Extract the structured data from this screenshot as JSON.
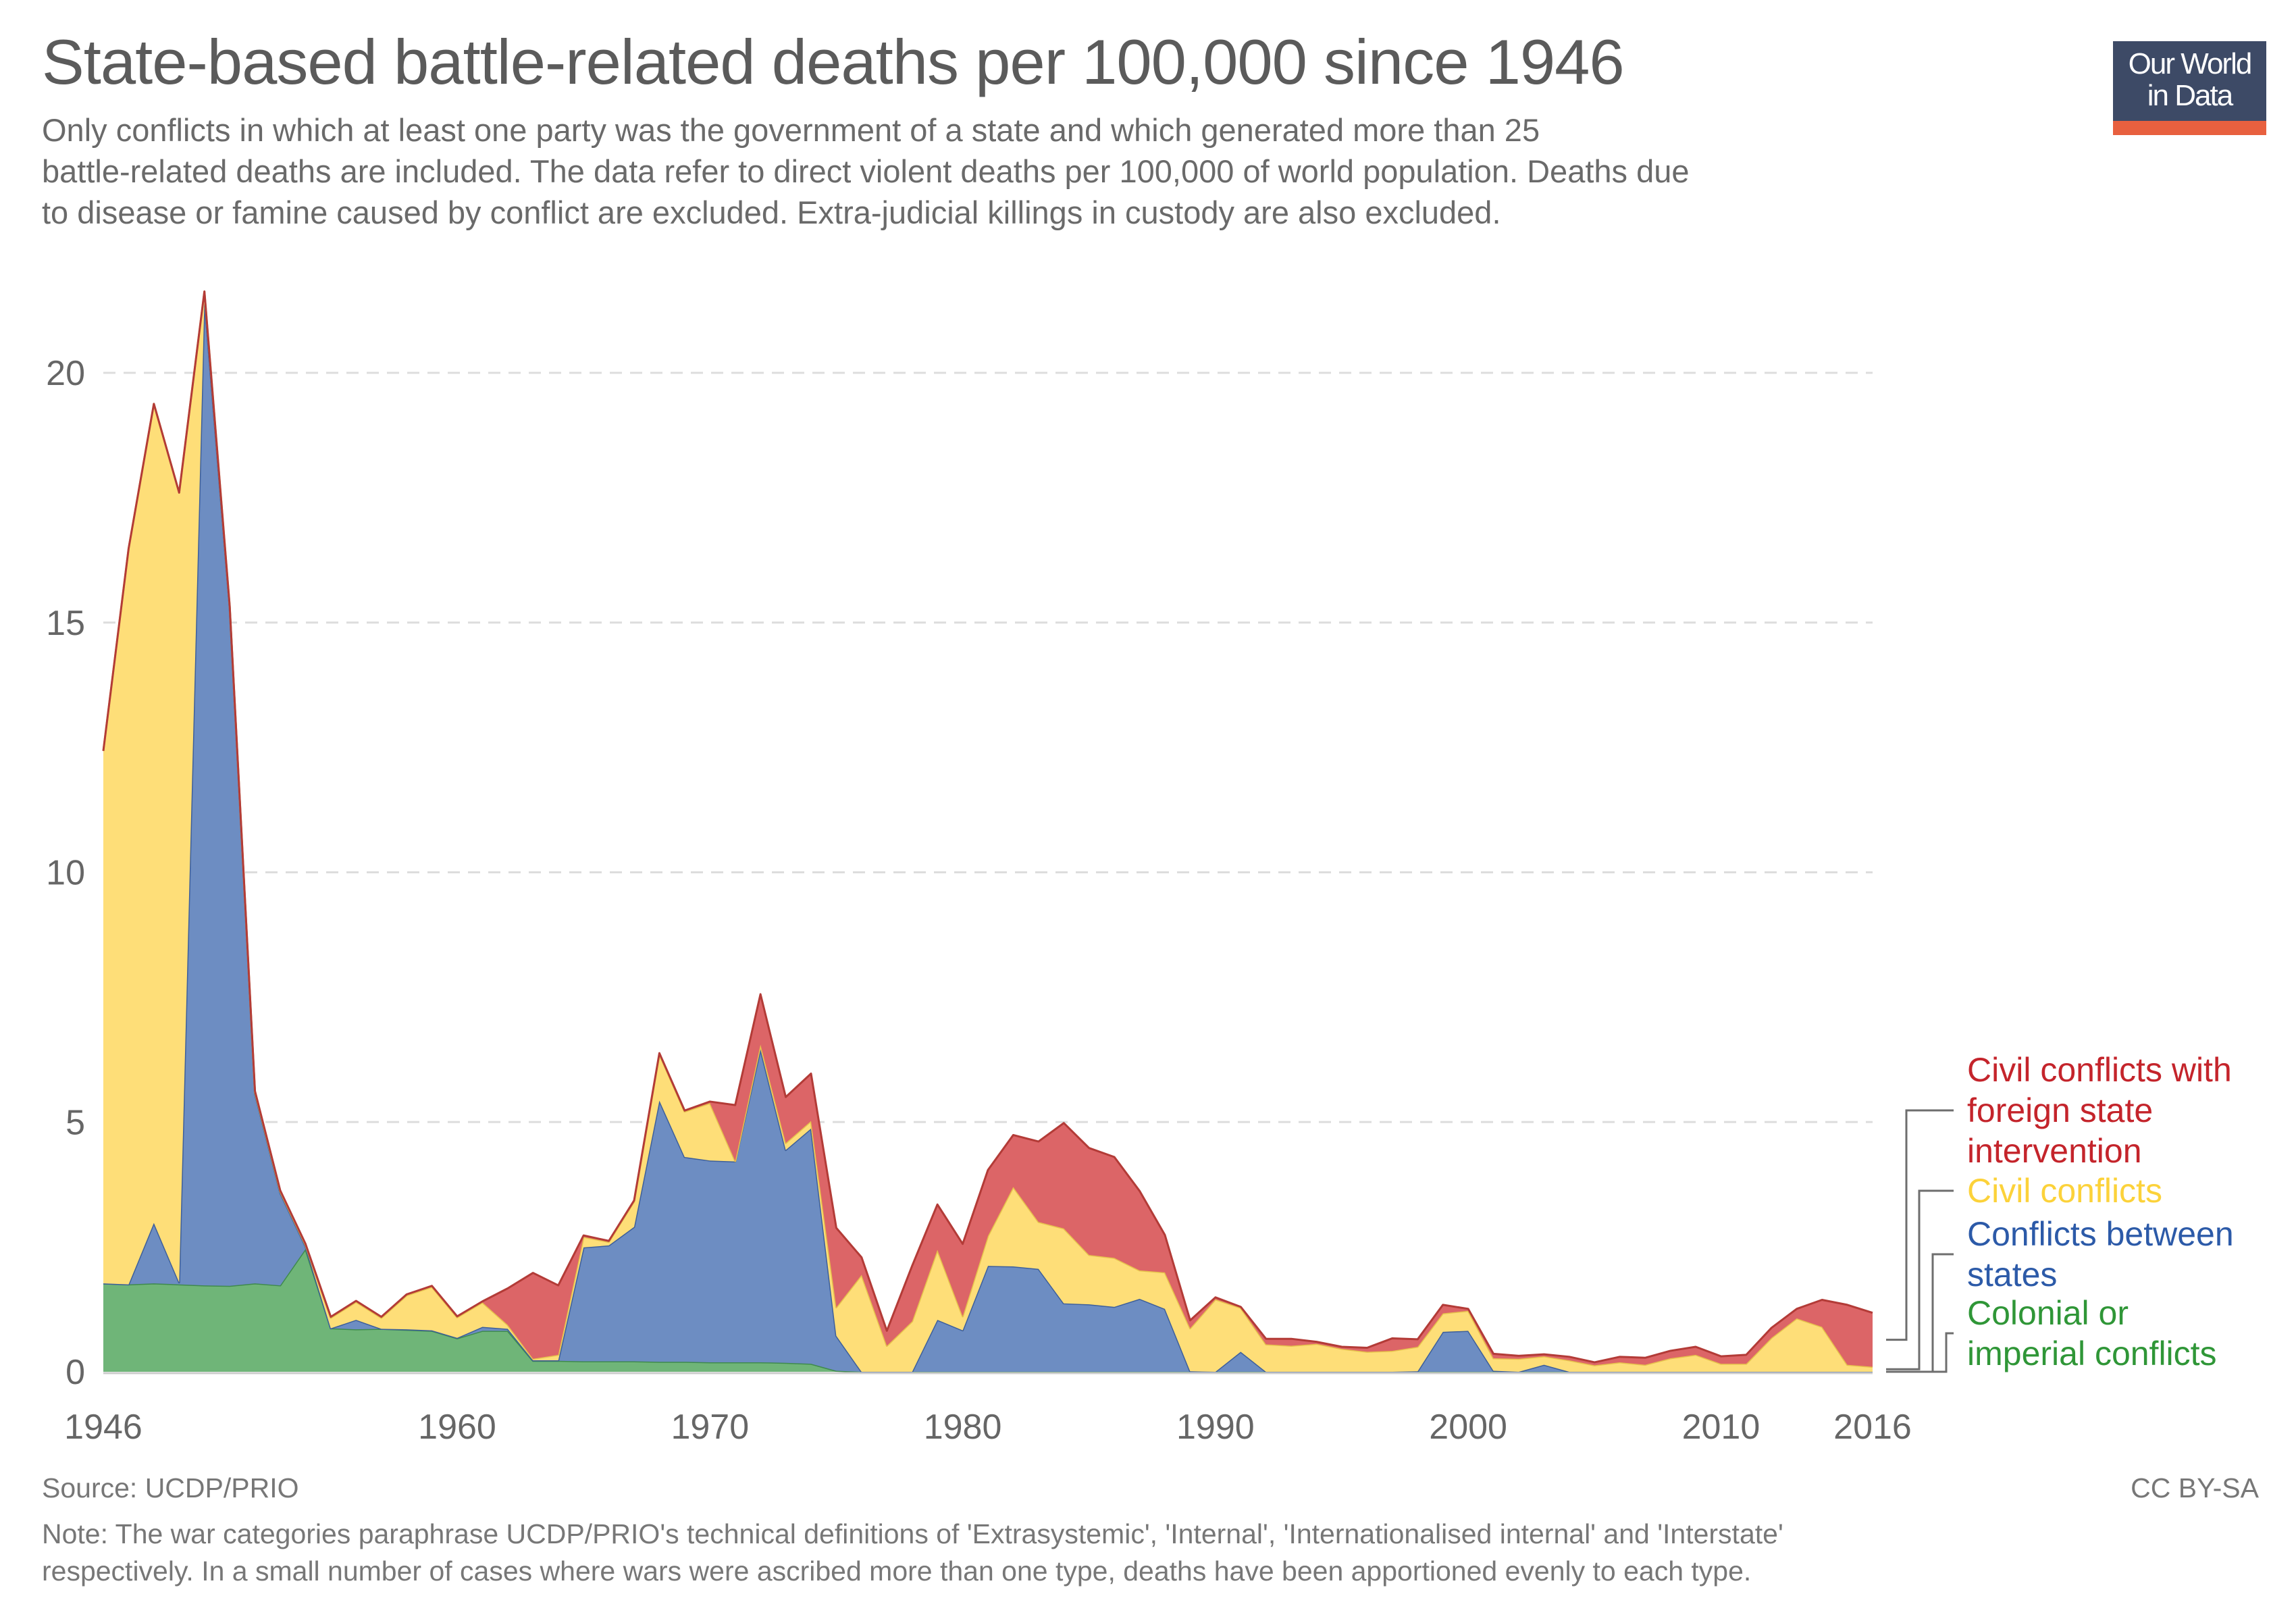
{
  "header": {
    "title": "State-based battle-related deaths per 100,000 since 1946",
    "subtitle_lines": [
      "Only conflicts in which at least one party was the government of a state and which generated more than 25",
      "battle-related deaths are included. The data refer to direct violent deaths per 100,000 of world population. Deaths due",
      "to disease or famine caused by conflict are excluded. Extra-judicial killings in custody are also excluded."
    ],
    "logo_line1": "Our World",
    "logo_line2": "in Data"
  },
  "footer": {
    "source": "Source: UCDP/PRIO",
    "license": "CC BY-SA",
    "note_lines": [
      "Note: The war categories paraphrase UCDP/PRIO's technical definitions of 'Extrasystemic', 'Internal', 'Internationalised internal' and 'Interstate'",
      "respectively. In a small number of cases where wars were ascribed more than one type, deaths have been apportioned evenly to each type."
    ]
  },
  "colors": {
    "colonial": "#6fb578",
    "between_states": "#6d8dc2",
    "civil": "#fede78",
    "civil_foreign": "#dc6567",
    "colonial_stroke": "#3f8a4d",
    "between_states_stroke": "#3d5f9b",
    "civil_stroke": "#e6c24c",
    "civil_foreign_stroke": "#b33b37",
    "colonial_label": "#2f9637",
    "between_states_label": "#2c5aa8",
    "civil_label": "#fcd23a",
    "civil_foreign_label": "#c4242b",
    "grid": "#dddddd",
    "text": "#666666"
  },
  "chart_data": {
    "type": "area",
    "stacked": true,
    "title": "State-based battle-related deaths per 100,000 since 1946",
    "xlabel": "",
    "ylabel": "",
    "xlim": [
      1946,
      2016
    ],
    "ylim": [
      0,
      22
    ],
    "grid": true,
    "legend_position": "right",
    "x_ticks": [
      "1946",
      "1960",
      "1970",
      "1980",
      "1990",
      "2000",
      "2010",
      "2016"
    ],
    "y_ticks": [
      "0",
      "5",
      "10",
      "15",
      "20"
    ],
    "x": [
      1946,
      1947,
      1948,
      1949,
      1950,
      1951,
      1952,
      1953,
      1954,
      1955,
      1956,
      1957,
      1958,
      1959,
      1960,
      1961,
      1962,
      1963,
      1964,
      1965,
      1966,
      1967,
      1968,
      1969,
      1970,
      1971,
      1972,
      1973,
      1974,
      1975,
      1976,
      1977,
      1978,
      1979,
      1980,
      1981,
      1982,
      1983,
      1984,
      1985,
      1986,
      1987,
      1988,
      1989,
      1990,
      1991,
      1992,
      1993,
      1994,
      1995,
      1996,
      1997,
      1998,
      1999,
      2000,
      2001,
      2002,
      2003,
      2004,
      2005,
      2006,
      2007,
      2008,
      2009,
      2010,
      2011,
      2012,
      2013,
      2014,
      2015,
      2016
    ],
    "series": [
      {
        "key": "colonial",
        "name": "Colonial or imperial conflicts",
        "label_lines": [
          "Colonial or",
          "imperial conflicts"
        ],
        "values": [
          1.77,
          1.75,
          1.77,
          1.75,
          1.73,
          1.72,
          1.77,
          1.73,
          2.46,
          0.87,
          0.85,
          0.86,
          0.84,
          0.82,
          0.67,
          0.82,
          0.82,
          0.22,
          0.22,
          0.21,
          0.21,
          0.21,
          0.2,
          0.2,
          0.19,
          0.19,
          0.19,
          0.18,
          0.16,
          0.02,
          0,
          0,
          0,
          0,
          0,
          0,
          0,
          0,
          0,
          0,
          0,
          0,
          0,
          0,
          0,
          0,
          0,
          0,
          0,
          0,
          0,
          0,
          0,
          0,
          0,
          0,
          0,
          0,
          0,
          0,
          0,
          0,
          0,
          0,
          0,
          0,
          0,
          0,
          0,
          0,
          0
        ]
      },
      {
        "key": "between_states",
        "name": "Conflicts between states",
        "label_lines": [
          "Conflicts between",
          "states"
        ],
        "values": [
          0,
          0,
          1.21,
          0.04,
          19.77,
          13.58,
          3.8,
          1.85,
          0.05,
          0,
          0.19,
          0,
          0.01,
          0.01,
          0.01,
          0.08,
          0.04,
          0.01,
          0.01,
          2.28,
          2.32,
          2.69,
          5.23,
          4.1,
          4.04,
          4.02,
          6.27,
          4.26,
          4.71,
          0.7,
          0,
          0,
          0,
          1.04,
          0.83,
          2.12,
          2.11,
          2.06,
          1.37,
          1.35,
          1.3,
          1.46,
          1.26,
          0.01,
          0,
          0.4,
          0,
          0,
          0,
          0,
          0,
          0,
          0.01,
          0.8,
          0.82,
          0.02,
          0,
          0.14,
          0,
          0,
          0,
          0,
          0,
          0,
          0,
          0,
          0,
          0,
          0,
          0,
          0
        ]
      },
      {
        "key": "civil",
        "name": "Civil conflicts",
        "label_lines": [
          "Civil conflicts"
        ],
        "values": [
          10.66,
          14.73,
          16.4,
          15.81,
          0.13,
          0.03,
          0.03,
          0.03,
          0.03,
          0.21,
          0.36,
          0.22,
          0.68,
          0.87,
          0.41,
          0.49,
          0.08,
          0.03,
          0.11,
          0.21,
          0.07,
          0.51,
          0.93,
          0.91,
          1.15,
          0.01,
          0.09,
          0.14,
          0.15,
          0.57,
          1.94,
          0.52,
          1.01,
          1.4,
          0.28,
          0.6,
          1.59,
          0.94,
          1.5,
          0.99,
          0.98,
          0.57,
          0.73,
          0.86,
          1.45,
          0.88,
          0.55,
          0.52,
          0.56,
          0.46,
          0.4,
          0.42,
          0.49,
          0.37,
          0.4,
          0.25,
          0.26,
          0.17,
          0.23,
          0.13,
          0.19,
          0.14,
          0.27,
          0.34,
          0.16,
          0.16,
          0.68,
          1.07,
          0.9,
          0.14,
          0.1
        ]
      },
      {
        "key": "civil_foreign",
        "name": "Civil conflicts with foreign state intervention",
        "label_lines": [
          "Civil conflicts with",
          "foreign state",
          "intervention"
        ],
        "values": [
          0,
          0,
          0,
          0,
          0,
          0,
          0.02,
          0.02,
          0.02,
          0.02,
          0.02,
          0.02,
          0.02,
          0.02,
          0.02,
          0.02,
          0.73,
          1.72,
          1.39,
          0.03,
          0.02,
          0.02,
          0.02,
          0.02,
          0.03,
          1.12,
          1.01,
          0.92,
          0.95,
          1.59,
          0.35,
          0.3,
          1.11,
          0.91,
          1.45,
          1.32,
          1.04,
          1.61,
          2.11,
          2.14,
          2.02,
          1.59,
          0.75,
          0.16,
          0.04,
          0.02,
          0.11,
          0.14,
          0.04,
          0.04,
          0.08,
          0.25,
          0.15,
          0.17,
          0.04,
          0.09,
          0.06,
          0.04,
          0.07,
          0.06,
          0.11,
          0.14,
          0.15,
          0.16,
          0.15,
          0.18,
          0.2,
          0.19,
          0.54,
          1.2,
          1.08
        ]
      }
    ]
  }
}
